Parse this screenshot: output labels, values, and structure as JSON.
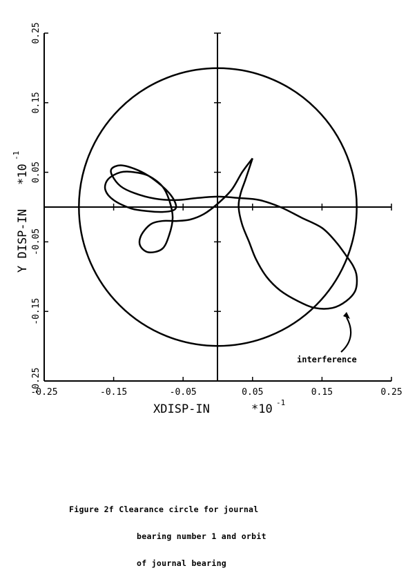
{
  "chart_data": {
    "type": "line",
    "xlabel": "XDISP-IN",
    "xlabel_scale": "*10",
    "xlabel_exp": "-1",
    "ylabel": "Y DISP-IN",
    "ylabel_scale": "*10",
    "ylabel_exp": "-1",
    "xlim": [
      -0.25,
      0.25
    ],
    "ylim": [
      -0.25,
      0.25
    ],
    "x_ticks": [
      "-0.25",
      "-0.15",
      "-0.05",
      "0.05",
      "0.15",
      "0.25"
    ],
    "y_ticks": [
      "-0.25",
      "-0.15",
      "-0.05",
      "0.05",
      "0.15",
      "0.25"
    ],
    "x_tick_values": [
      -0.25,
      -0.15,
      -0.05,
      0.05,
      0.15,
      0.25
    ],
    "y_tick_values": [
      -0.25,
      -0.15,
      -0.05,
      0.05,
      0.15,
      0.25
    ],
    "clearance_circle": {
      "center": [
        0,
        0
      ],
      "radius": 0.2
    },
    "orbit": {
      "x": [
        0.05,
        0.035,
        0.02,
        0.0,
        -0.02,
        -0.04,
        -0.06,
        -0.08,
        -0.097,
        -0.11,
        -0.112,
        -0.1,
        -0.08,
        -0.07,
        -0.065,
        -0.07,
        -0.08,
        -0.1,
        -0.12,
        -0.14,
        -0.158,
        -0.162,
        -0.15,
        -0.125,
        -0.1,
        -0.08,
        -0.065,
        -0.06,
        -0.063,
        -0.07,
        -0.08,
        -0.1,
        -0.12,
        -0.14,
        -0.153,
        -0.152,
        -0.14,
        -0.12,
        -0.09,
        -0.06,
        -0.03,
        0.0,
        0.03,
        0.06,
        0.09,
        0.12,
        0.15,
        0.17,
        0.185,
        0.195,
        0.2,
        0.198,
        0.185,
        0.165,
        0.14,
        0.115,
        0.09,
        0.07,
        0.055,
        0.045,
        0.035,
        0.03,
        0.033,
        0.04,
        0.05
      ],
      "y": [
        0.07,
        0.05,
        0.025,
        0.005,
        -0.01,
        -0.018,
        -0.02,
        -0.02,
        -0.025,
        -0.04,
        -0.055,
        -0.065,
        -0.06,
        -0.04,
        -0.015,
        0.01,
        0.03,
        0.045,
        0.05,
        0.05,
        0.04,
        0.025,
        0.01,
        -0.002,
        -0.006,
        -0.007,
        -0.005,
        0.0,
        0.01,
        0.02,
        0.03,
        0.045,
        0.055,
        0.06,
        0.055,
        0.045,
        0.03,
        0.02,
        0.012,
        0.01,
        0.013,
        0.015,
        0.013,
        0.01,
        0.0,
        -0.015,
        -0.03,
        -0.05,
        -0.07,
        -0.085,
        -0.1,
        -0.12,
        -0.135,
        -0.145,
        -0.145,
        -0.135,
        -0.12,
        -0.1,
        -0.075,
        -0.05,
        -0.025,
        0.0,
        0.02,
        0.04,
        0.07
      ]
    },
    "annotations": [
      {
        "text": "interference",
        "target": [
          0.185,
          -0.135
        ]
      }
    ],
    "grid": false
  },
  "caption": {
    "line1": "Figure 2f Clearance circle for journal",
    "line2": "bearing number 1 and orbit",
    "line3": "of journal bearing"
  }
}
